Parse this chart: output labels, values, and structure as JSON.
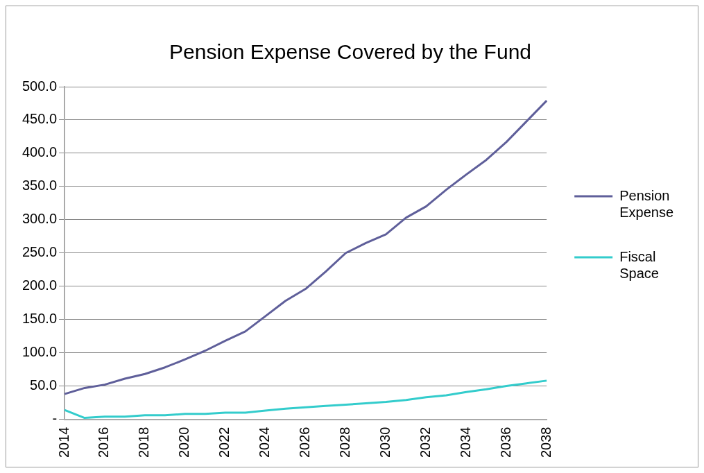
{
  "chart_data": {
    "type": "line",
    "title": "Pension Expense Covered by the Fund",
    "categories": [
      "2014",
      null,
      "2016",
      null,
      "2018",
      null,
      "2020",
      null,
      "2022",
      null,
      "2024",
      null,
      "2026",
      null,
      "2028",
      null,
      "2030",
      null,
      "2032",
      null,
      "2034",
      null,
      "2036",
      null,
      "2038"
    ],
    "series": [
      {
        "name": "Pension Expense",
        "color": "#5f5f9a",
        "values": [
          38,
          47,
          52,
          61,
          68,
          78,
          90,
          103,
          118,
          132,
          155,
          178,
          196,
          222,
          250,
          265,
          278,
          303,
          320,
          345,
          368,
          390,
          417,
          448,
          479
        ]
      },
      {
        "name": "Fiscal Space",
        "color": "#33cccc",
        "values": [
          14,
          2,
          4,
          4,
          6,
          6,
          8,
          8,
          10,
          10,
          13,
          16,
          18,
          20,
          22,
          24,
          26,
          29,
          33,
          36,
          41,
          45,
          50,
          54,
          58
        ]
      }
    ],
    "ylim": [
      0,
      500
    ],
    "yticks": [
      {
        "value": 0,
        "label": "-"
      },
      {
        "value": 50,
        "label": "50.0"
      },
      {
        "value": 100,
        "label": "100.0"
      },
      {
        "value": 150,
        "label": "150.0"
      },
      {
        "value": 200,
        "label": "200.0"
      },
      {
        "value": 250,
        "label": "250.0"
      },
      {
        "value": 300,
        "label": "300.0"
      },
      {
        "value": 350,
        "label": "350.0"
      },
      {
        "value": 400,
        "label": "400.0"
      },
      {
        "value": 450,
        "label": "450.0"
      },
      {
        "value": 500,
        "label": "500.0"
      }
    ],
    "grid": "y",
    "legend": "right",
    "marker": "none",
    "line_style": "solid"
  }
}
